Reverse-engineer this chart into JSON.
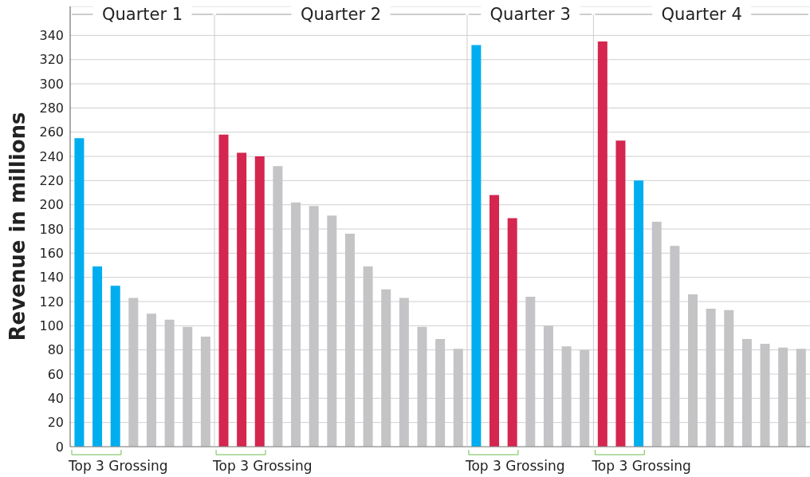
{
  "chart_data": {
    "type": "bar",
    "ylabel": "Revenue in millions",
    "categories": [
      null,
      null,
      null,
      null,
      null,
      null,
      null,
      null,
      null,
      null,
      null,
      null,
      null,
      null,
      null,
      null,
      null,
      null,
      null,
      null,
      null,
      null,
      null,
      null,
      null,
      null,
      null,
      null,
      null,
      null,
      null,
      null,
      null,
      null,
      null,
      null,
      null,
      null,
      null,
      null,
      null
    ],
    "values": [
      255,
      149,
      133,
      123,
      110,
      105,
      99,
      91,
      258,
      243,
      240,
      232,
      202,
      199,
      191,
      176,
      149,
      130,
      123,
      99,
      89,
      81,
      332,
      208,
      189,
      124,
      100,
      83,
      80,
      335,
      253,
      220,
      186,
      166,
      126,
      114,
      113,
      89,
      85,
      82,
      81
    ],
    "colors": [
      "#00aeef",
      "#00aeef",
      "#00aeef",
      "#c4c4c6",
      "#c4c4c6",
      "#c4c4c6",
      "#c4c4c6",
      "#c4c4c6",
      "#d4264f",
      "#d4264f",
      "#d4264f",
      "#c4c4c6",
      "#c4c4c6",
      "#c4c4c6",
      "#c4c4c6",
      "#c4c4c6",
      "#c4c4c6",
      "#c4c4c6",
      "#c4c4c6",
      "#c4c4c6",
      "#c4c4c6",
      "#c4c4c6",
      "#00aeef",
      "#d4264f",
      "#d4264f",
      "#c4c4c6",
      "#c4c4c6",
      "#c4c4c6",
      "#c4c4c6",
      "#d4264f",
      "#d4264f",
      "#00aeef",
      "#c4c4c6",
      "#c4c4c6",
      "#c4c4c6",
      "#c4c4c6",
      "#c4c4c6",
      "#c4c4c6",
      "#c4c4c6",
      "#c4c4c6",
      "#c4c4c6"
    ],
    "annotations": [
      "Quarter 1",
      "Quarter 2",
      "Quarter 3",
      "Quarter 4",
      "Top 3 Grossing",
      "Top 3 Grossing",
      "Top 3 Grossing",
      "Top 3 Grossing"
    ],
    "ylim": [
      0,
      364
    ],
    "yticks": [
      0,
      20,
      40,
      60,
      80,
      100,
      120,
      140,
      160,
      180,
      200,
      220,
      240,
      260,
      280,
      300,
      320,
      340
    ],
    "grid": "y",
    "legend": false
  }
}
